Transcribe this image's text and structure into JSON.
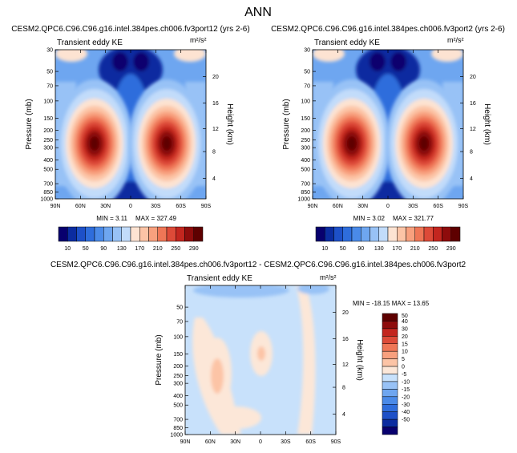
{
  "figure": {
    "title": "ANN"
  },
  "chart_data": [
    {
      "type": "heatmap",
      "title": "CESM2.QPC6.C96.C96.g16.intel.384pes.ch006.fv3port12 (yrs 2-6)",
      "subtitle": "Transient eddy KE",
      "units": "m²/s²",
      "xlabel": "",
      "ylabel": "Pressure (mb)",
      "y2label": "Height (km)",
      "x_ticks": [
        "90N",
        "60N",
        "30N",
        "0",
        "30S",
        "60S",
        "90S"
      ],
      "y_ticks": [
        30,
        50,
        70,
        100,
        150,
        200,
        250,
        300,
        400,
        500,
        700,
        850,
        1000
      ],
      "y2_ticks": [
        20,
        16,
        12,
        8,
        4
      ],
      "ylim": [
        1000,
        30
      ],
      "y_scale": "log",
      "min_label": "MIN =   3.11",
      "max_label": "MAX = 327.49",
      "contour_levels": [
        10,
        30,
        50,
        70,
        90,
        110,
        130,
        150,
        170,
        190,
        210,
        230,
        250,
        270,
        290
      ],
      "colorbar_labels": [
        "10",
        "50",
        "90",
        "130",
        "170",
        "210",
        "250",
        "290"
      ],
      "jet_maxima": [
        {
          "lat": "~40N",
          "pressure": 260,
          "value": 327
        },
        {
          "lat": "~40S",
          "pressure": 260,
          "value": 320
        }
      ]
    },
    {
      "type": "heatmap",
      "title": "CESM2.QPC6.C96.C96.g16.intel.384pes.ch006.fv3port2 (yrs 2-6)",
      "subtitle": "Transient eddy KE",
      "units": "m²/s²",
      "xlabel": "",
      "ylabel": "Pressure (mb)",
      "y2label": "Height (km)",
      "x_ticks": [
        "90N",
        "60N",
        "30N",
        "0",
        "30S",
        "60S",
        "90S"
      ],
      "y_ticks": [
        30,
        50,
        70,
        100,
        150,
        200,
        250,
        300,
        400,
        500,
        700,
        850,
        1000
      ],
      "y2_ticks": [
        20,
        16,
        12,
        8,
        4
      ],
      "ylim": [
        1000,
        30
      ],
      "y_scale": "log",
      "min_label": "MIN =   3.02",
      "max_label": "MAX = 321.77",
      "contour_levels": [
        10,
        30,
        50,
        70,
        90,
        110,
        130,
        150,
        170,
        190,
        210,
        230,
        250,
        270,
        290
      ],
      "colorbar_labels": [
        "10",
        "50",
        "90",
        "130",
        "170",
        "210",
        "250",
        "290"
      ],
      "jet_maxima": [
        {
          "lat": "~40N",
          "pressure": 260,
          "value": 321
        },
        {
          "lat": "~40S",
          "pressure": 260,
          "value": 315
        }
      ]
    },
    {
      "type": "heatmap",
      "title": "CESM2.QPC6.C96.C96.g16.intel.384pes.ch006.fv3port12 - CESM2.QPC6.C96.C96.g16.intel.384pes.ch006.fv3port2",
      "subtitle": "Transient eddy KE",
      "units": "m²/s²",
      "xlabel": "",
      "ylabel": "Pressure (mb)",
      "y2label": "Height (km)",
      "x_ticks": [
        "90N",
        "60N",
        "30N",
        "0",
        "30S",
        "60S",
        "90S"
      ],
      "y_ticks": [
        50,
        70,
        100,
        150,
        200,
        250,
        300,
        400,
        500,
        700,
        850,
        1000
      ],
      "y2_ticks": [
        20,
        16,
        12,
        8,
        4
      ],
      "ylim": [
        1000,
        30
      ],
      "y_scale": "log",
      "minmax_label": "MIN = -18.15  MAX =  13.65",
      "contour_levels": [
        -50,
        -40,
        -30,
        -20,
        -15,
        -10,
        -5,
        0,
        5,
        10,
        15,
        20,
        30,
        40,
        50
      ],
      "colorbar_labels": [
        "50",
        "40",
        "30",
        "20",
        "15",
        "10",
        "5",
        "0",
        "-5",
        "-10",
        "-15",
        "-20",
        "-30",
        "-40",
        "-50"
      ]
    }
  ],
  "colors": {
    "abs_scale": [
      "#08006e",
      "#0b2ca0",
      "#1d50c8",
      "#2e6ddc",
      "#4a8ae8",
      "#6ea6f0",
      "#98c2f6",
      "#c2dcfa",
      "#fde3d2",
      "#fcc4a6",
      "#f8a07e",
      "#ef7656",
      "#dd4a38",
      "#c3261f",
      "#8e0c0c",
      "#5e0000"
    ],
    "diff_scale": [
      "#08006e",
      "#0b2ca0",
      "#1d50c8",
      "#2e6ddc",
      "#4a8ae8",
      "#6ea6f0",
      "#98c2f6",
      "#c8e1fb",
      "#fce7d8",
      "#fcc4a6",
      "#f8a07e",
      "#ef7656",
      "#dd4a38",
      "#c3261f",
      "#8e0c0c",
      "#5e0000"
    ]
  }
}
